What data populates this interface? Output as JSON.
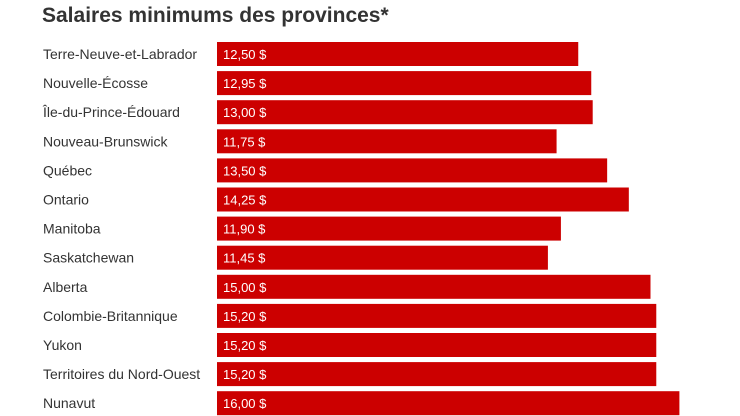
{
  "chart_data": {
    "type": "bar",
    "orientation": "horizontal",
    "title": "Salaires minimums des provinces*",
    "xlabel": "",
    "ylabel": "",
    "xlim": [
      0,
      16
    ],
    "grid": false,
    "legend": "none",
    "bar_color": "#cc0000",
    "categories": [
      "Terre-Neuve-et-Labrador",
      "Nouvelle-Écosse",
      "Île-du-Prince-Édouard",
      "Nouveau-Brunswick",
      "Québec",
      "Ontario",
      "Manitoba",
      "Saskatchewan",
      "Alberta",
      "Colombie-Britannique",
      "Yukon",
      "Territoires du Nord-Ouest",
      "Nunavut"
    ],
    "values": [
      12.5,
      12.95,
      13.0,
      11.75,
      13.5,
      14.25,
      11.9,
      11.45,
      15.0,
      15.2,
      15.2,
      15.2,
      16.0
    ],
    "value_labels": [
      "12,50 $",
      "12,95 $",
      "13,00 $",
      "11,75 $",
      "13,50 $",
      "14,25 $",
      "11,90 $",
      "11,45 $",
      "15,00 $",
      "15,20 $",
      "15,20 $",
      "15,20 $",
      "16,00 $"
    ]
  }
}
